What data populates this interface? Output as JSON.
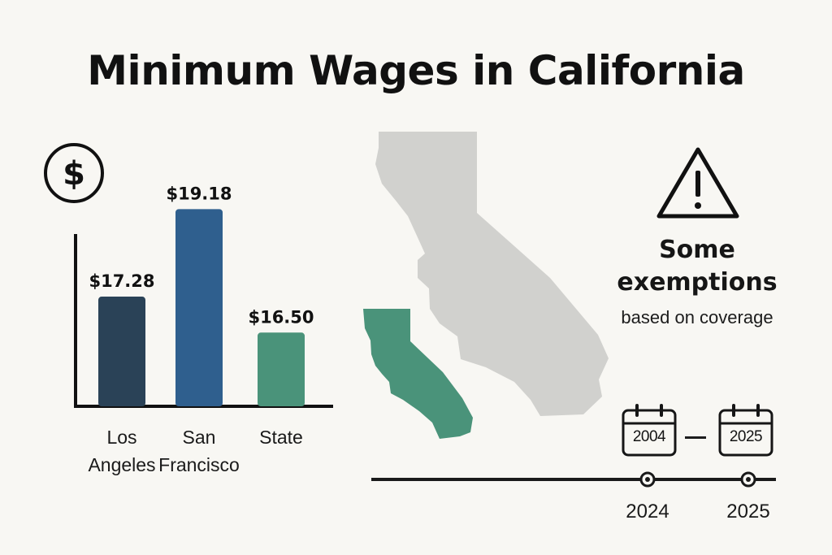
{
  "title": "Minimum Wages in California",
  "chart_data": {
    "type": "bar",
    "categories": [
      "Los Angeles",
      "San Francisco",
      "State"
    ],
    "category_lines": [
      [
        "Los",
        "Angeles"
      ],
      [
        "San",
        "Francisco"
      ],
      [
        "State"
      ]
    ],
    "values": [
      17.28,
      19.18,
      16.5
    ],
    "value_labels": [
      "$17.28",
      "$19.18",
      "$16.50"
    ],
    "colors": [
      "#2a4257",
      "#2f5f8e",
      "#4a937a"
    ],
    "ylim": [
      14.9,
      19.75
    ],
    "title": "",
    "xlabel": "",
    "ylabel": ""
  },
  "icons": {
    "dollar": "dollar-circle-icon",
    "warning": "warning-triangle-icon",
    "calendar": "calendar-icon"
  },
  "colors": {
    "map_state": "#d1d1ce",
    "map_highlight": "#4a937a",
    "text": "#161616"
  },
  "exemptions": {
    "heading_line1": "Some",
    "heading_line2": "exemptions",
    "subtext": "based on coverage"
  },
  "calendar": {
    "start_year": "2004",
    "end_year": "2025"
  },
  "timeline": {
    "points": [
      "2024",
      "2025"
    ]
  }
}
